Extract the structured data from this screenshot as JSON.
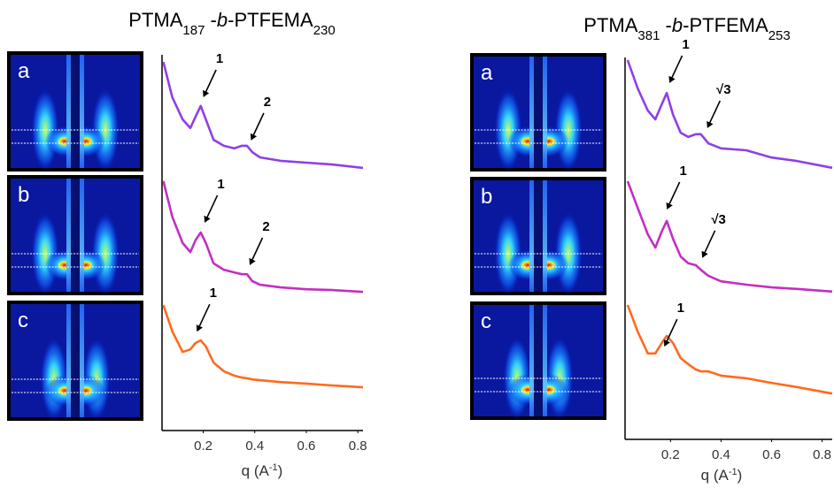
{
  "chart_data": [
    {
      "type": "line",
      "title_parts": [
        "PTMA",
        "187",
        " -",
        "b",
        "-PTFEMA",
        "230"
      ],
      "x_label_parts": [
        "q (A",
        "-1",
        ")"
      ],
      "panels": [
        "a",
        "b",
        "c"
      ],
      "xlim": [
        0.04,
        0.82
      ],
      "ylim": [
        0,
        10
      ],
      "xticks": [
        0.2,
        0.4,
        0.6,
        0.8
      ],
      "series": [
        {
          "color": "#8f3fe6",
          "x": [
            0.045,
            0.08,
            0.12,
            0.15,
            0.17,
            0.19,
            0.21,
            0.24,
            0.28,
            0.32,
            0.35,
            0.37,
            0.39,
            0.42,
            0.5,
            0.6,
            0.7,
            0.82
          ],
          "values": [
            9.81,
            8.87,
            8.28,
            8.05,
            8.35,
            8.64,
            8.28,
            7.74,
            7.58,
            7.51,
            7.58,
            7.58,
            7.41,
            7.27,
            7.18,
            7.13,
            7.08,
            6.99
          ],
          "annotations": [
            {
              "text": "1",
              "x": 0.195,
              "y": 8.8
            },
            {
              "text": "2",
              "x": 0.38,
              "y": 7.65
            }
          ]
        },
        {
          "color": "#c22fc2",
          "x": [
            0.045,
            0.08,
            0.12,
            0.15,
            0.17,
            0.19,
            0.21,
            0.24,
            0.28,
            0.32,
            0.35,
            0.37,
            0.39,
            0.42,
            0.5,
            0.6,
            0.7,
            0.82
          ],
          "values": [
            6.64,
            5.69,
            4.99,
            4.75,
            5.06,
            5.27,
            4.99,
            4.45,
            4.28,
            4.21,
            4.16,
            4.16,
            3.98,
            3.88,
            3.81,
            3.76,
            3.74,
            3.69
          ],
          "annotations": [
            {
              "text": "1",
              "x": 0.2,
              "y": 5.46
            },
            {
              "text": "2",
              "x": 0.375,
              "y": 4.33
            }
          ]
        },
        {
          "color": "#ff6a1f",
          "x": [
            0.045,
            0.08,
            0.12,
            0.15,
            0.17,
            0.19,
            0.21,
            0.24,
            0.28,
            0.32,
            0.35,
            0.37,
            0.39,
            0.42,
            0.5,
            0.6,
            0.7,
            0.82
          ],
          "values": [
            3.34,
            2.64,
            2.09,
            2.16,
            2.33,
            2.4,
            2.24,
            1.81,
            1.58,
            1.46,
            1.41,
            1.39,
            1.36,
            1.34,
            1.29,
            1.25,
            1.2,
            1.15
          ],
          "annotations": [
            {
              "text": "1",
              "x": 0.17,
              "y": 2.56
            }
          ]
        }
      ]
    },
    {
      "type": "line",
      "title_parts": [
        "PTMA",
        "381",
        " -",
        "b",
        "-PTFEMA",
        "253"
      ],
      "x_label_parts": [
        "q (A",
        "-1",
        ")"
      ],
      "panels": [
        "a",
        "b",
        "c"
      ],
      "xlim": [
        0.02,
        0.84
      ],
      "ylim": [
        0,
        10
      ],
      "xticks": [
        0.2,
        0.4,
        0.6,
        0.8
      ],
      "series": [
        {
          "color": "#8f3fe6",
          "x": [
            0.03,
            0.07,
            0.11,
            0.14,
            0.165,
            0.185,
            0.21,
            0.24,
            0.27,
            0.3,
            0.32,
            0.35,
            0.4,
            0.5,
            0.6,
            0.7,
            0.84
          ],
          "values": [
            9.93,
            9.19,
            8.61,
            8.38,
            8.77,
            9.07,
            8.5,
            8.03,
            7.92,
            7.99,
            7.99,
            7.75,
            7.62,
            7.57,
            7.38,
            7.29,
            7.11
          ],
          "annotations": [
            {
              "text": "1",
              "x": 0.19,
              "y": 9.26
            },
            {
              "text": "√3",
              "x": 0.34,
              "y": 8.08
            }
          ]
        },
        {
          "color": "#c22fc2",
          "x": [
            0.03,
            0.07,
            0.11,
            0.14,
            0.165,
            0.185,
            0.21,
            0.24,
            0.27,
            0.3,
            0.32,
            0.35,
            0.4,
            0.5,
            0.6,
            0.7,
            0.84
          ],
          "values": [
            6.76,
            6.06,
            5.37,
            5.02,
            5.44,
            5.72,
            5.25,
            4.79,
            4.61,
            4.56,
            4.44,
            4.28,
            4.14,
            4.05,
            3.98,
            3.94,
            3.87
          ],
          "annotations": [
            {
              "text": "1",
              "x": 0.18,
              "y": 5.95
            },
            {
              "text": "√3",
              "x": 0.32,
              "y": 4.68
            }
          ]
        },
        {
          "color": "#ff6a1f",
          "x": [
            0.03,
            0.07,
            0.11,
            0.14,
            0.165,
            0.185,
            0.21,
            0.24,
            0.27,
            0.3,
            0.32,
            0.35,
            0.4,
            0.5,
            0.6,
            0.7,
            0.84
          ],
          "values": [
            3.52,
            2.82,
            2.25,
            2.25,
            2.52,
            2.71,
            2.52,
            2.13,
            1.97,
            1.83,
            1.78,
            1.78,
            1.67,
            1.6,
            1.48,
            1.37,
            1.2
          ],
          "annotations": [
            {
              "text": "1",
              "x": 0.17,
              "y": 2.36
            }
          ]
        }
      ]
    }
  ]
}
